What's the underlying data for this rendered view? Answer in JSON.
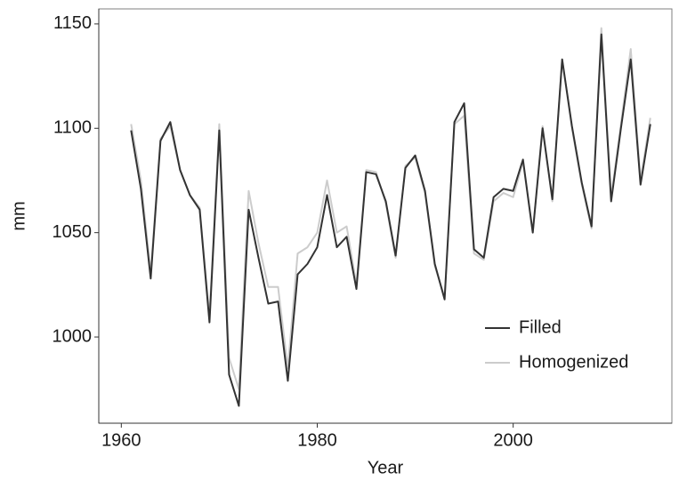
{
  "chart_data": {
    "type": "line",
    "x_label": "Year",
    "y_label": "mm",
    "x": [
      1961,
      1962,
      1963,
      1964,
      1965,
      1966,
      1967,
      1968,
      1969,
      1970,
      1971,
      1972,
      1973,
      1974,
      1975,
      1976,
      1977,
      1978,
      1979,
      1980,
      1981,
      1982,
      1983,
      1984,
      1985,
      1986,
      1987,
      1988,
      1989,
      1990,
      1991,
      1992,
      1993,
      1994,
      1995,
      1996,
      1997,
      1998,
      1999,
      2000,
      2001,
      2002,
      2003,
      2004,
      2005,
      2006,
      2007,
      2008,
      2009,
      2010,
      2011,
      2012,
      2013,
      2014
    ],
    "series": [
      {
        "name": "Filled",
        "color": "#333333",
        "values": [
          1099,
          1071,
          1028,
          1094,
          1103,
          1080,
          1068,
          1061,
          1007,
          1099,
          982,
          967,
          1061,
          1038,
          1016,
          1017,
          979,
          1030,
          1035,
          1043,
          1068,
          1043,
          1048,
          1023,
          1079,
          1078,
          1065,
          1039,
          1081,
          1087,
          1070,
          1035,
          1018,
          1103,
          1112,
          1042,
          1038,
          1067,
          1071,
          1070,
          1085,
          1050,
          1100,
          1066,
          1133,
          1101,
          1074,
          1053,
          1145,
          1065,
          1100,
          1133,
          1073,
          1102
        ]
      },
      {
        "name": "Homogenized",
        "color": "#cccccc",
        "values": [
          1102,
          1075,
          1031,
          1095,
          1101,
          1080,
          1068,
          1062,
          1010,
          1102,
          990,
          975,
          1070,
          1045,
          1024,
          1024,
          985,
          1040,
          1043,
          1050,
          1075,
          1050,
          1053,
          1025,
          1080,
          1079,
          1064,
          1038,
          1082,
          1086,
          1069,
          1034,
          1019,
          1102,
          1106,
          1040,
          1037,
          1065,
          1069,
          1067,
          1084,
          1050,
          1101,
          1065,
          1133,
          1100,
          1073,
          1052,
          1148,
          1067,
          1102,
          1138,
          1075,
          1105
        ]
      }
    ],
    "xlim": [
      1957.7,
      2016.2
    ],
    "xticks": [
      1960,
      1980,
      2000
    ],
    "ylim": [
      958.7,
      1157.2
    ],
    "yticks": [
      1000,
      1050,
      1100,
      1150
    ],
    "legend": "bottom-right"
  }
}
